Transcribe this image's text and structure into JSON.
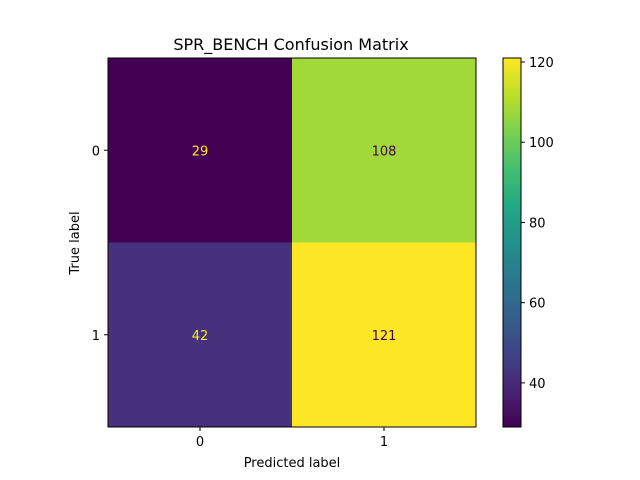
{
  "chart_data": {
    "type": "heatmap",
    "title": "SPR_BENCH Confusion Matrix",
    "xlabel": "Predicted label",
    "ylabel": "True label",
    "x_categories": [
      "0",
      "1"
    ],
    "y_categories": [
      "0",
      "1"
    ],
    "values": [
      [
        29,
        108
      ],
      [
        42,
        121
      ]
    ],
    "colormap": "viridis",
    "colorbar": {
      "vmin": 29,
      "vmax": 121,
      "ticks": [
        40,
        60,
        80,
        100,
        120
      ],
      "tick_labels": [
        "40",
        "60",
        "80",
        "100",
        "120"
      ]
    },
    "grid": false,
    "colors": {
      "low_text": "#fde725",
      "high_text": "#440154"
    }
  }
}
